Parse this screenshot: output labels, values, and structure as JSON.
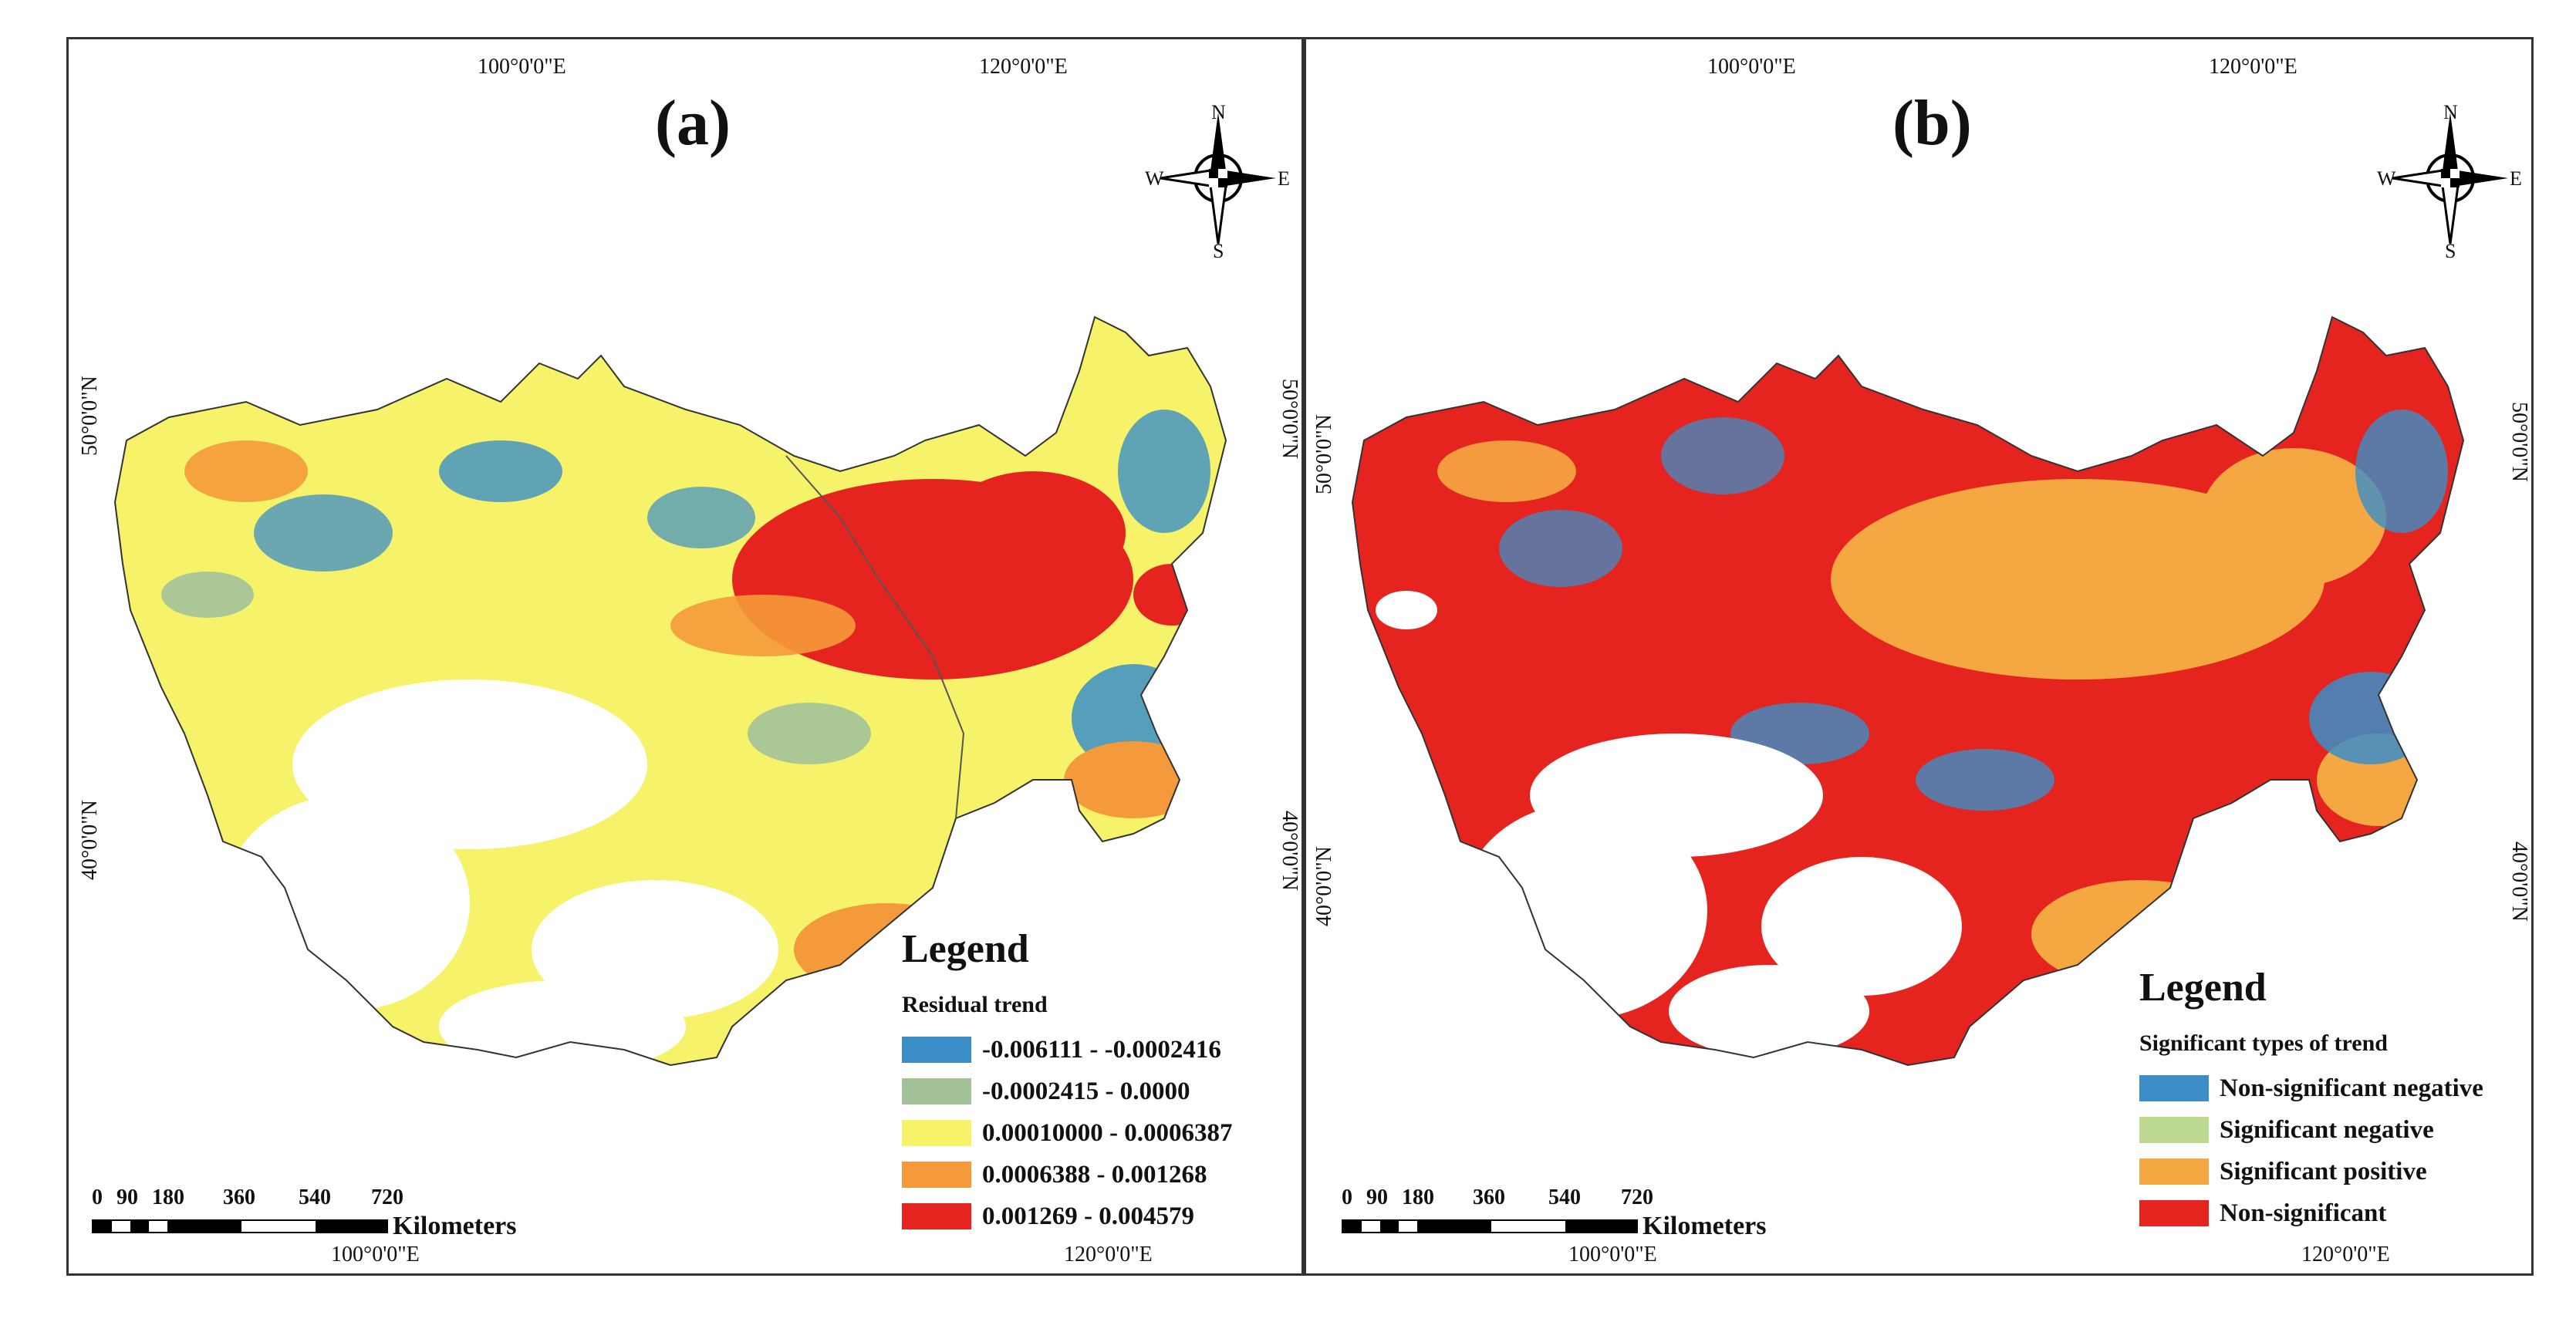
{
  "panel_a": {
    "label": "(a)",
    "lon_top": [
      "100°0'0\"E",
      "120°0'0\"E"
    ],
    "lon_bottom": [
      "100°0'0\"E",
      "120°0'0\"E"
    ],
    "lat_left": [
      "50°0'0\"N",
      "40°0'0\"N"
    ],
    "lat_right": [
      "50°0'0\"N",
      "40°0'0\"N"
    ],
    "compass": {
      "n": "N",
      "s": "S",
      "e": "E",
      "w": "W"
    },
    "legend": {
      "title": "Legend",
      "subtitle": "Residual trend",
      "items": [
        {
          "label": "-0.006111 - -0.0002416",
          "color": "#3b8ec8"
        },
        {
          "label": "-0.0002415 - 0.0000",
          "color": "#a3c29a"
        },
        {
          "label": "0.00010000 - 0.0006387",
          "color": "#f6f36a"
        },
        {
          "label": "0.0006388 - 0.001268",
          "color": "#f59a3a"
        },
        {
          "label": "0.001269 - 0.004579",
          "color": "#e5241f"
        }
      ]
    },
    "scale": {
      "ticks": [
        "0",
        "90",
        "180",
        "360",
        "540",
        "720"
      ],
      "unit": "Kilometers"
    }
  },
  "panel_b": {
    "label": "(b)",
    "lon_top": [
      "100°0'0\"E",
      "120°0'0\"E"
    ],
    "lon_bottom": [
      "100°0'0\"E",
      "120°0'0\"E"
    ],
    "lat_left": [
      "50°0'0\"N",
      "40°0'0\"N"
    ],
    "lat_right": [
      "50°0'0\"N",
      "40°0'0\"N"
    ],
    "compass": {
      "n": "N",
      "s": "S",
      "e": "E",
      "w": "W"
    },
    "legend": {
      "title": "Legend",
      "subtitle": "Significant types of trend",
      "items": [
        {
          "label": "Non-significant negative",
          "color": "#3b8ec8"
        },
        {
          "label": "Significant negative",
          "color": "#bcd98f"
        },
        {
          "label": "Significant positive",
          "color": "#f5a742"
        },
        {
          "label": "Non-significant",
          "color": "#e5241f"
        }
      ]
    },
    "scale": {
      "ticks": [
        "0",
        "90",
        "180",
        "360",
        "540",
        "720"
      ],
      "unit": "Kilometers"
    }
  }
}
